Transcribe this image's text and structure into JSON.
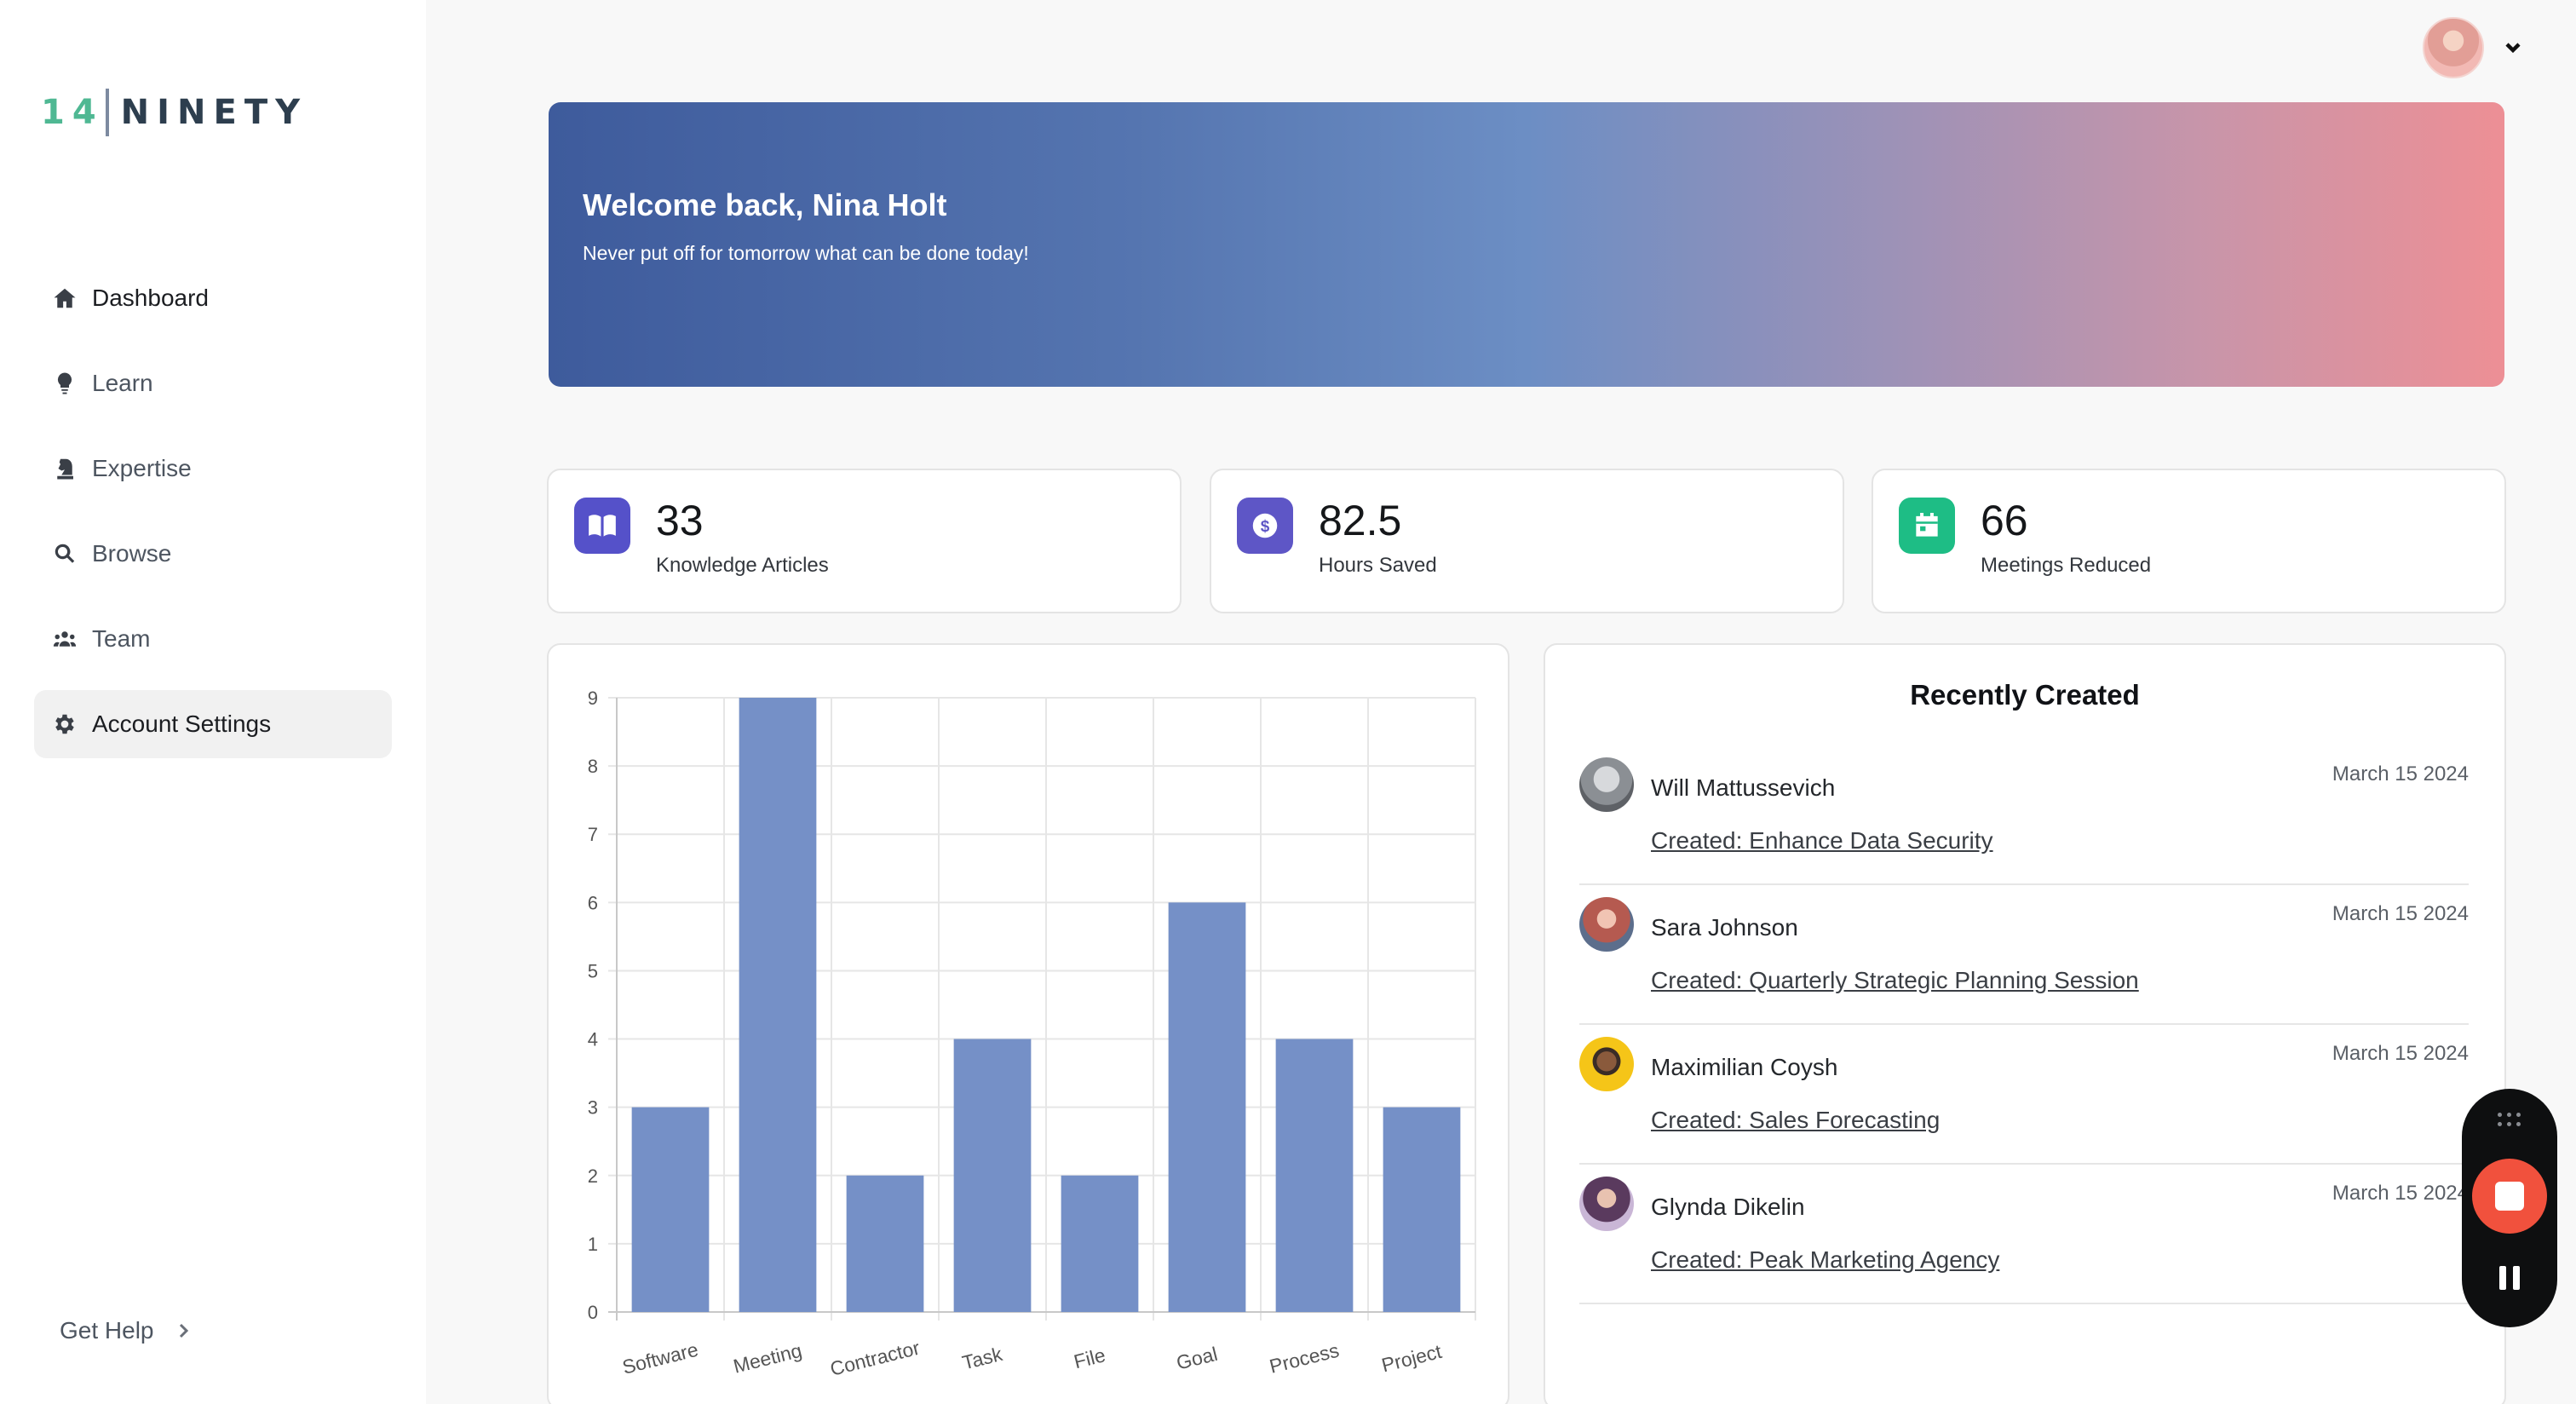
{
  "logo": {
    "number": "14",
    "word": "NINETY"
  },
  "sidebar": {
    "items": [
      {
        "label": "Dashboard",
        "icon": "home-icon"
      },
      {
        "label": "Learn",
        "icon": "lightbulb-icon"
      },
      {
        "label": "Expertise",
        "icon": "chess-knight-icon"
      },
      {
        "label": "Browse",
        "icon": "search-icon"
      },
      {
        "label": "Team",
        "icon": "team-icon"
      },
      {
        "label": "Account Settings",
        "icon": "gear-icon",
        "active": true
      }
    ],
    "help_label": "Get Help"
  },
  "hero": {
    "title": "Welcome back, Nina Holt",
    "subtitle": "Never put off for tomorrow what can be done today!"
  },
  "stats": [
    {
      "value": "33",
      "label": "Knowledge Articles",
      "icon": "book-icon",
      "color": "#5551c9"
    },
    {
      "value": "82.5",
      "label": "Hours Saved",
      "icon": "dollar-icon",
      "color": "#5e56c6"
    },
    {
      "value": "66",
      "label": "Meetings Reduced",
      "icon": "calendar-icon",
      "color": "#1ebd85"
    }
  ],
  "chart_data": {
    "type": "bar",
    "categories": [
      "Software",
      "Meeting",
      "Contractor",
      "Task",
      "File",
      "Goal",
      "Process",
      "Project"
    ],
    "values": [
      3,
      9,
      2,
      4,
      2,
      6,
      4,
      3
    ],
    "ylim": [
      0,
      9
    ],
    "yticks": [
      0,
      1,
      2,
      3,
      4,
      5,
      6,
      7,
      8,
      9
    ],
    "grid": true,
    "bar_color": "#7590c7"
  },
  "recent": {
    "title": "Recently Created",
    "items": [
      {
        "name": "Will Mattussevich",
        "date": "March 15 2024",
        "link": "Created: Enhance Data Security"
      },
      {
        "name": "Sara Johnson",
        "date": "March 15 2024",
        "link": "Created: Quarterly Strategic Planning Session"
      },
      {
        "name": "Maximilian Coysh",
        "date": "March 15 2024",
        "link": "Created: Sales Forecasting"
      },
      {
        "name": "Glynda Dikelin",
        "date": "March 15 2024",
        "link": "Created: Peak Marketing Agency"
      }
    ]
  },
  "colors": {
    "accent": "#4fb893",
    "chart_bar": "#7590c7",
    "record": "#f1513d"
  }
}
